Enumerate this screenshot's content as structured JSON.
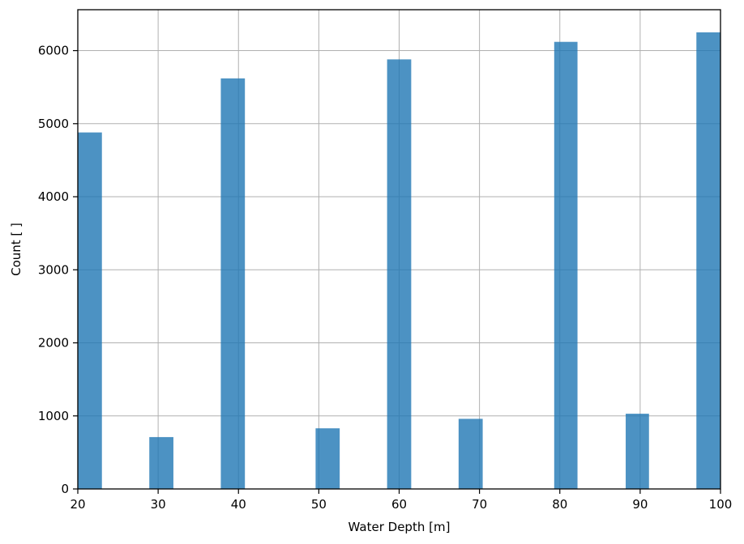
{
  "chart_data": {
    "type": "bar",
    "title": "",
    "xlabel": "Water Depth [m]",
    "ylabel": "Count [ ]",
    "xlim": [
      20,
      100
    ],
    "ylim": [
      0,
      6560
    ],
    "grid": true,
    "bar_color": "#1f77b4",
    "bar_opacity": 0.8,
    "bars": [
      {
        "x_start": 20.0,
        "x_end": 23.0,
        "value": 4880
      },
      {
        "x_start": 28.9,
        "x_end": 31.9,
        "value": 710
      },
      {
        "x_start": 37.8,
        "x_end": 40.8,
        "value": 5620
      },
      {
        "x_start": 49.6,
        "x_end": 52.6,
        "value": 830
      },
      {
        "x_start": 58.5,
        "x_end": 61.5,
        "value": 5880
      },
      {
        "x_start": 67.4,
        "x_end": 70.4,
        "value": 960
      },
      {
        "x_start": 79.3,
        "x_end": 82.2,
        "value": 6120
      },
      {
        "x_start": 88.2,
        "x_end": 91.1,
        "value": 1030
      },
      {
        "x_start": 97.0,
        "x_end": 100.0,
        "value": 6250
      }
    ],
    "x_ticks": [
      20,
      30,
      40,
      50,
      60,
      70,
      80,
      90,
      100
    ],
    "y_ticks": [
      0,
      1000,
      2000,
      3000,
      4000,
      5000,
      6000
    ]
  }
}
